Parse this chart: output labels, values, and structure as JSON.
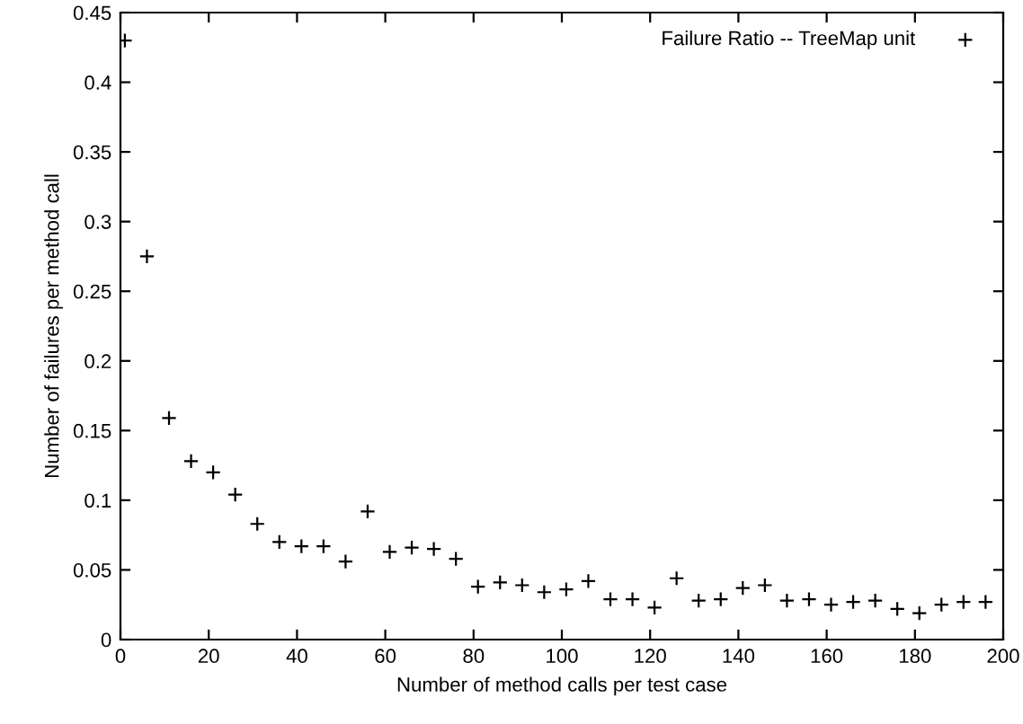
{
  "chart_data": {
    "type": "scatter",
    "xlabel": "Number of method calls per test case",
    "ylabel": "Number of failures per method call",
    "x": [
      1,
      6,
      11,
      16,
      21,
      26,
      31,
      36,
      41,
      46,
      51,
      56,
      61,
      66,
      71,
      76,
      81,
      86,
      91,
      96,
      101,
      106,
      111,
      116,
      121,
      126,
      131,
      136,
      141,
      146,
      151,
      156,
      161,
      166,
      171,
      176,
      181,
      186,
      191,
      196
    ],
    "series": [
      {
        "name": "Failure Ratio -- TreeMap unit",
        "color": "#000000",
        "values": [
          0.43,
          0.275,
          0.159,
          0.128,
          0.12,
          0.104,
          0.083,
          0.07,
          0.067,
          0.067,
          0.056,
          0.092,
          0.063,
          0.066,
          0.065,
          0.058,
          0.038,
          0.041,
          0.039,
          0.034,
          0.036,
          0.042,
          0.029,
          0.029,
          0.023,
          0.044,
          0.028,
          0.029,
          0.037,
          0.039,
          0.028,
          0.029,
          0.025,
          0.027,
          0.028,
          0.022,
          0.019,
          0.025,
          0.027,
          0.027
        ]
      }
    ],
    "xlim": [
      0,
      200
    ],
    "xticks": [
      0,
      20,
      40,
      60,
      80,
      100,
      120,
      140,
      160,
      180,
      200
    ],
    "ylim": [
      0,
      0.45
    ],
    "yticks": [
      0,
      0.05,
      0.1,
      0.15,
      0.2,
      0.25,
      0.3,
      0.35,
      0.4,
      0.45
    ],
    "marker": "cross",
    "legend": "top right",
    "grid": false
  }
}
